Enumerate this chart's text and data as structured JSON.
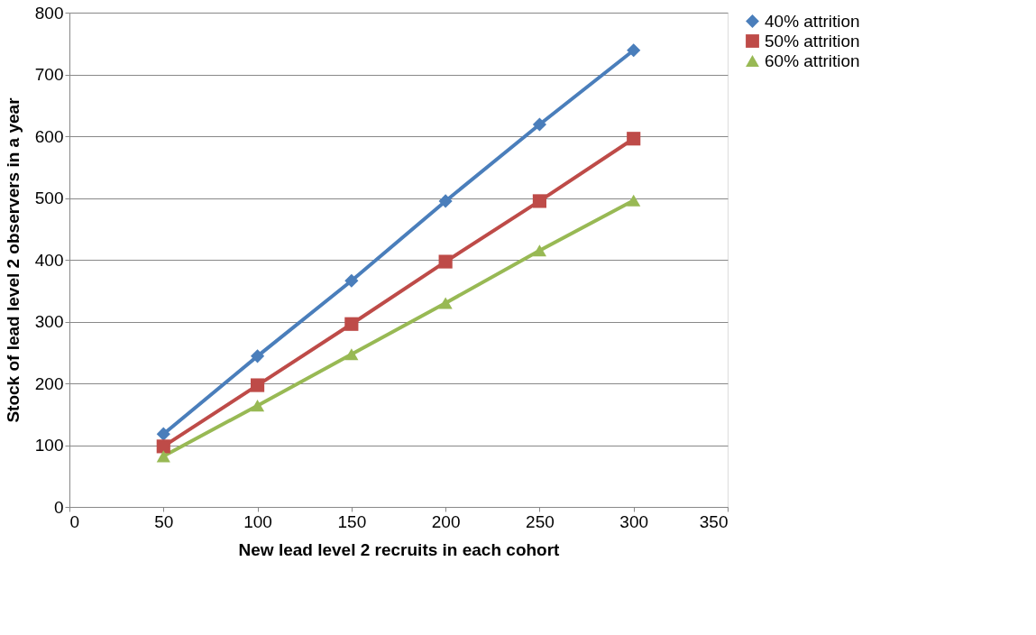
{
  "chart_data": {
    "type": "line",
    "xlabel": "New lead level 2 recruits in each cohort",
    "ylabel": "Stock of  lead level 2 observers in a year",
    "x": [
      50,
      100,
      150,
      200,
      250,
      300
    ],
    "series": [
      {
        "name": "40% attrition",
        "color": "#4a7ebb",
        "marker": "diamond",
        "values": [
          118,
          244,
          366,
          495,
          619,
          739
        ]
      },
      {
        "name": "50% attrition",
        "color": "#be4b48",
        "marker": "square",
        "values": [
          98,
          197,
          296,
          397,
          495,
          596
        ]
      },
      {
        "name": "60% attrition",
        "color": "#98b954",
        "marker": "triangle",
        "values": [
          82,
          164,
          247,
          330,
          415,
          496
        ]
      }
    ],
    "xlim": [
      0,
      350
    ],
    "xticks": [
      0,
      50,
      100,
      150,
      200,
      250,
      300,
      350
    ],
    "ylim": [
      0,
      800
    ],
    "yticks": [
      0,
      100,
      200,
      300,
      400,
      500,
      600,
      700,
      800
    ],
    "grid": "y",
    "legend": "right",
    "line_style": "solid"
  }
}
